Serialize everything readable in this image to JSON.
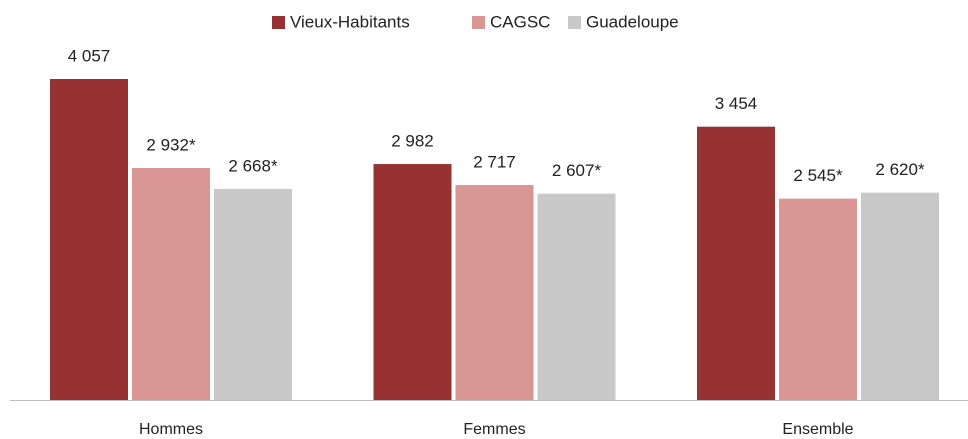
{
  "chart_data": {
    "type": "bar",
    "categories": [
      "Hommes",
      "Femmes",
      "Ensemble"
    ],
    "series": [
      {
        "name": "Vieux-Habitants",
        "color": "#963232",
        "values": [
          4057,
          2982,
          3454
        ],
        "value_labels": [
          "4 057",
          "2 982",
          "3 454"
        ]
      },
      {
        "name": "CAGSC",
        "color": "#d99694",
        "values": [
          2932,
          2717,
          2545
        ],
        "value_labels": [
          "2 932*",
          "2 717",
          "2 545*"
        ]
      },
      {
        "name": "Guadeloupe",
        "color": "#c8c8c8",
        "values": [
          2668,
          2607,
          2620
        ],
        "value_labels": [
          "2 668*",
          "2 607*",
          "2 620*"
        ]
      }
    ],
    "legend": "top"
  }
}
